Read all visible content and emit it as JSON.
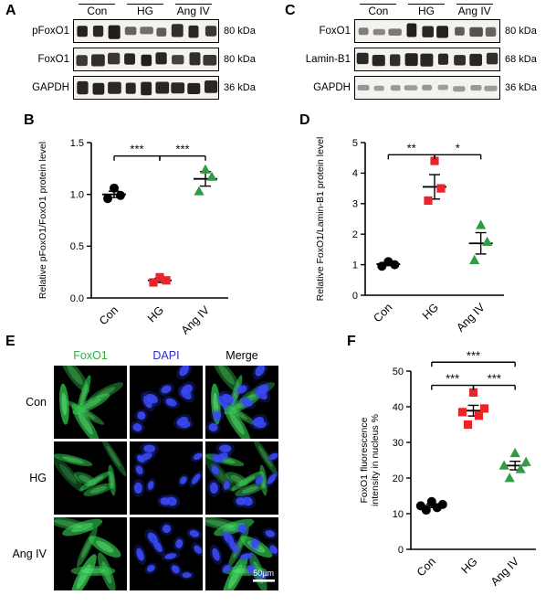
{
  "panels": {
    "a": {
      "label": "A",
      "groups": [
        "Con",
        "HG",
        "Ang IV"
      ],
      "rows": [
        {
          "protein": "pFoxO1",
          "kda": "80 kDa",
          "bands": [
            0.92,
            0.88,
            0.95,
            0.5,
            0.42,
            0.55,
            0.85,
            0.9,
            0.8
          ]
        },
        {
          "protein": "FoxO1",
          "kda": "80 kDa",
          "bands": [
            0.78,
            0.85,
            0.8,
            0.9,
            0.95,
            0.9,
            0.72,
            0.85,
            0.8
          ]
        },
        {
          "protein": "GAPDH",
          "kda": "36 kDa",
          "bands": [
            0.9,
            0.92,
            0.88,
            0.9,
            0.93,
            0.9,
            0.88,
            0.92,
            0.9
          ]
        }
      ]
    },
    "c": {
      "label": "C",
      "groups": [
        "Con",
        "HG",
        "Ang IV"
      ],
      "rows": [
        {
          "protein": "FoxO1",
          "kda": "80 kDa",
          "bands": [
            0.32,
            0.26,
            0.35,
            0.95,
            0.9,
            0.92,
            0.55,
            0.62,
            0.5
          ]
        },
        {
          "protein": "Lamin-B1",
          "kda": "68 kDa",
          "bands": [
            0.88,
            0.9,
            0.85,
            0.92,
            0.9,
            0.88,
            0.85,
            0.9,
            0.86
          ]
        },
        {
          "protein": "GAPDH",
          "kda": "36 kDa",
          "bands": [
            0.16,
            0.12,
            0.15,
            0.13,
            0.16,
            0.12,
            0.14,
            0.15,
            0.13
          ]
        }
      ]
    },
    "b": {
      "label": "B"
    },
    "d": {
      "label": "D"
    },
    "e": {
      "label": "E",
      "columns": [
        {
          "label": "FoxO1",
          "color": "#33ae47"
        },
        {
          "label": "DAPI",
          "color": "#2a2ad0"
        },
        {
          "label": "Merge",
          "color": "#000000"
        }
      ],
      "rows": [
        "Con",
        "HG",
        "Ang IV"
      ],
      "scale_bar": "50µm"
    },
    "f": {
      "label": "F"
    }
  },
  "chart_data": [
    {
      "panel": "B",
      "type": "scatter",
      "categories": [
        "Con",
        "HG",
        "Ang IV"
      ],
      "ylabel": [
        "Relative pFoxO1/FoxO1 protein level"
      ],
      "xlabel": "",
      "ylim": [
        0,
        1.5
      ],
      "yticks": [
        0,
        0.5,
        1,
        1.5
      ],
      "ytick_labels": [
        "0.0",
        "0.5",
        "1.0",
        "1.5"
      ],
      "grid": false,
      "series": [
        {
          "name": "Con",
          "marker": "circle",
          "color": "#000000",
          "values": [
            0.96,
            0.99,
            1.06
          ],
          "mean": 1.0,
          "sem": 0.03
        },
        {
          "name": "HG",
          "marker": "square",
          "color": "#e8262a",
          "values": [
            0.15,
            0.17,
            0.2
          ],
          "mean": 0.17,
          "sem": 0.02
        },
        {
          "name": "Ang IV",
          "marker": "triangle",
          "color": "#2f9e41",
          "values": [
            1.03,
            1.17,
            1.24
          ],
          "mean": 1.15,
          "sem": 0.07
        }
      ],
      "significance": [
        {
          "a": 0,
          "b": 1,
          "y": 1.37,
          "label": "***"
        },
        {
          "a": 1,
          "b": 2,
          "y": 1.37,
          "label": "***"
        }
      ]
    },
    {
      "panel": "D",
      "type": "scatter",
      "categories": [
        "Con",
        "HG",
        "Ang IV"
      ],
      "ylabel": [
        "Relative FoxO1/Lamin-B1 protein level"
      ],
      "xlabel": "",
      "ylim": [
        0,
        5
      ],
      "yticks": [
        0,
        1,
        2,
        3,
        4,
        5
      ],
      "ytick_labels": [
        "0",
        "1",
        "2",
        "3",
        "4",
        "5"
      ],
      "grid": false,
      "series": [
        {
          "name": "Con",
          "marker": "circle",
          "color": "#000000",
          "values": [
            0.95,
            1.0,
            1.1
          ],
          "mean": 1.02,
          "sem": 0.05
        },
        {
          "name": "HG",
          "marker": "square",
          "color": "#e8262a",
          "values": [
            3.1,
            3.5,
            4.4
          ],
          "mean": 3.55,
          "sem": 0.4
        },
        {
          "name": "Ang IV",
          "marker": "triangle",
          "color": "#2f9e41",
          "values": [
            1.15,
            1.75,
            2.3
          ],
          "mean": 1.7,
          "sem": 0.35
        }
      ],
      "significance": [
        {
          "a": 0,
          "b": 1,
          "y": 4.6,
          "label": "**"
        },
        {
          "a": 1,
          "b": 2,
          "y": 4.6,
          "label": "*"
        }
      ]
    },
    {
      "panel": "F",
      "type": "scatter",
      "categories": [
        "Con",
        "HG",
        "Ang IV"
      ],
      "ylabel": [
        "FoxO1 fluorescence",
        "intensity in nucleus %"
      ],
      "xlabel": "",
      "ylim": [
        0,
        50
      ],
      "yticks": [
        0,
        10,
        20,
        30,
        40,
        50
      ],
      "ytick_labels": [
        "0",
        "10",
        "20",
        "30",
        "40",
        "50"
      ],
      "grid": false,
      "series": [
        {
          "name": "Con",
          "marker": "circle",
          "color": "#000000",
          "values": [
            11,
            11.7,
            12.2,
            12.6,
            13.4
          ],
          "mean": 12.2,
          "sem": 0.5
        },
        {
          "name": "HG",
          "marker": "square",
          "color": "#e8262a",
          "values": [
            35,
            37.5,
            38.5,
            39.5,
            44
          ],
          "mean": 38.9,
          "sem": 1.5
        },
        {
          "name": "Ang IV",
          "marker": "triangle",
          "color": "#2f9e41",
          "values": [
            20,
            22.5,
            23.5,
            24.5,
            27
          ],
          "mean": 23.5,
          "sem": 1.2
        }
      ],
      "significance": [
        {
          "a": 0,
          "b": 1,
          "y": 46,
          "label": "***"
        },
        {
          "a": 1,
          "b": 2,
          "y": 46,
          "label": "***"
        },
        {
          "a": 0,
          "b": 2,
          "y": 52.5,
          "label": "***"
        }
      ]
    }
  ]
}
